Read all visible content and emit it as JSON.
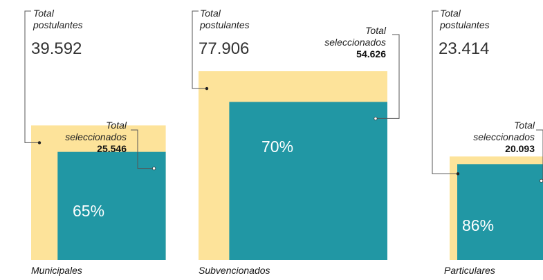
{
  "chart_data": {
    "type": "area-comparison",
    "title": "",
    "colors": {
      "postulantes": "#fde39a",
      "seleccionados": "#2197a4",
      "line": "#555555"
    },
    "postulantes_label": [
      "Total",
      "postulantes"
    ],
    "seleccionados_label": [
      "Total",
      "seleccionados"
    ],
    "groups": [
      {
        "category": "Municipales",
        "postulantes": "39.592",
        "seleccionados": "25.546",
        "pct": "65%",
        "postulantes_value": 39592,
        "seleccionados_value": 25546
      },
      {
        "category": "Subvencionados",
        "postulantes": "77.906",
        "seleccionados": "54.626",
        "pct": "70%",
        "postulantes_value": 77906,
        "seleccionados_value": 54626
      },
      {
        "category": "Particulares",
        "postulantes": "23.414",
        "seleccionados": "20.093",
        "pct": "86%",
        "postulantes_value": 23414,
        "seleccionados_value": 20093
      }
    ]
  }
}
